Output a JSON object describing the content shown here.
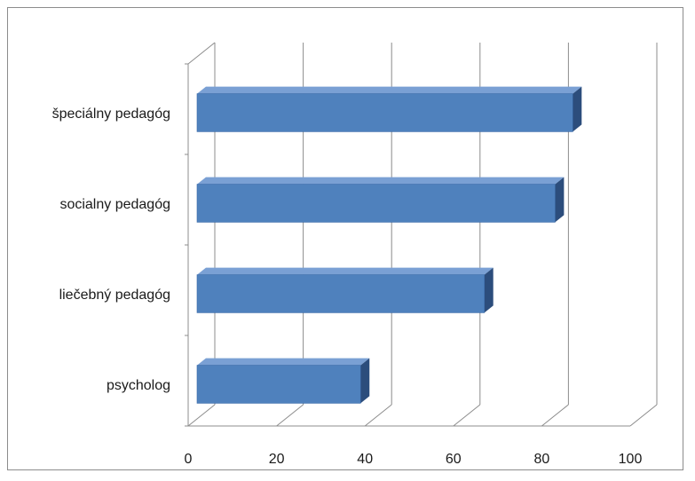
{
  "chart_data": {
    "type": "bar",
    "orientation": "horizontal",
    "style": "3d",
    "categories": [
      "psycholog",
      "liečebný pedagóg",
      "socialny pedagóg",
      "špeciálny pedagóg"
    ],
    "values": [
      37,
      65,
      81,
      85
    ],
    "xlim": [
      0,
      100
    ],
    "xticks": [
      0,
      20,
      40,
      60,
      80,
      100
    ],
    "grid": true,
    "legend": "none",
    "colors": {
      "bar_front": "#4f81bd",
      "bar_top": "#7aa0d4",
      "bar_side": "#2c4d7c",
      "grid": "#8c8c8c"
    }
  }
}
